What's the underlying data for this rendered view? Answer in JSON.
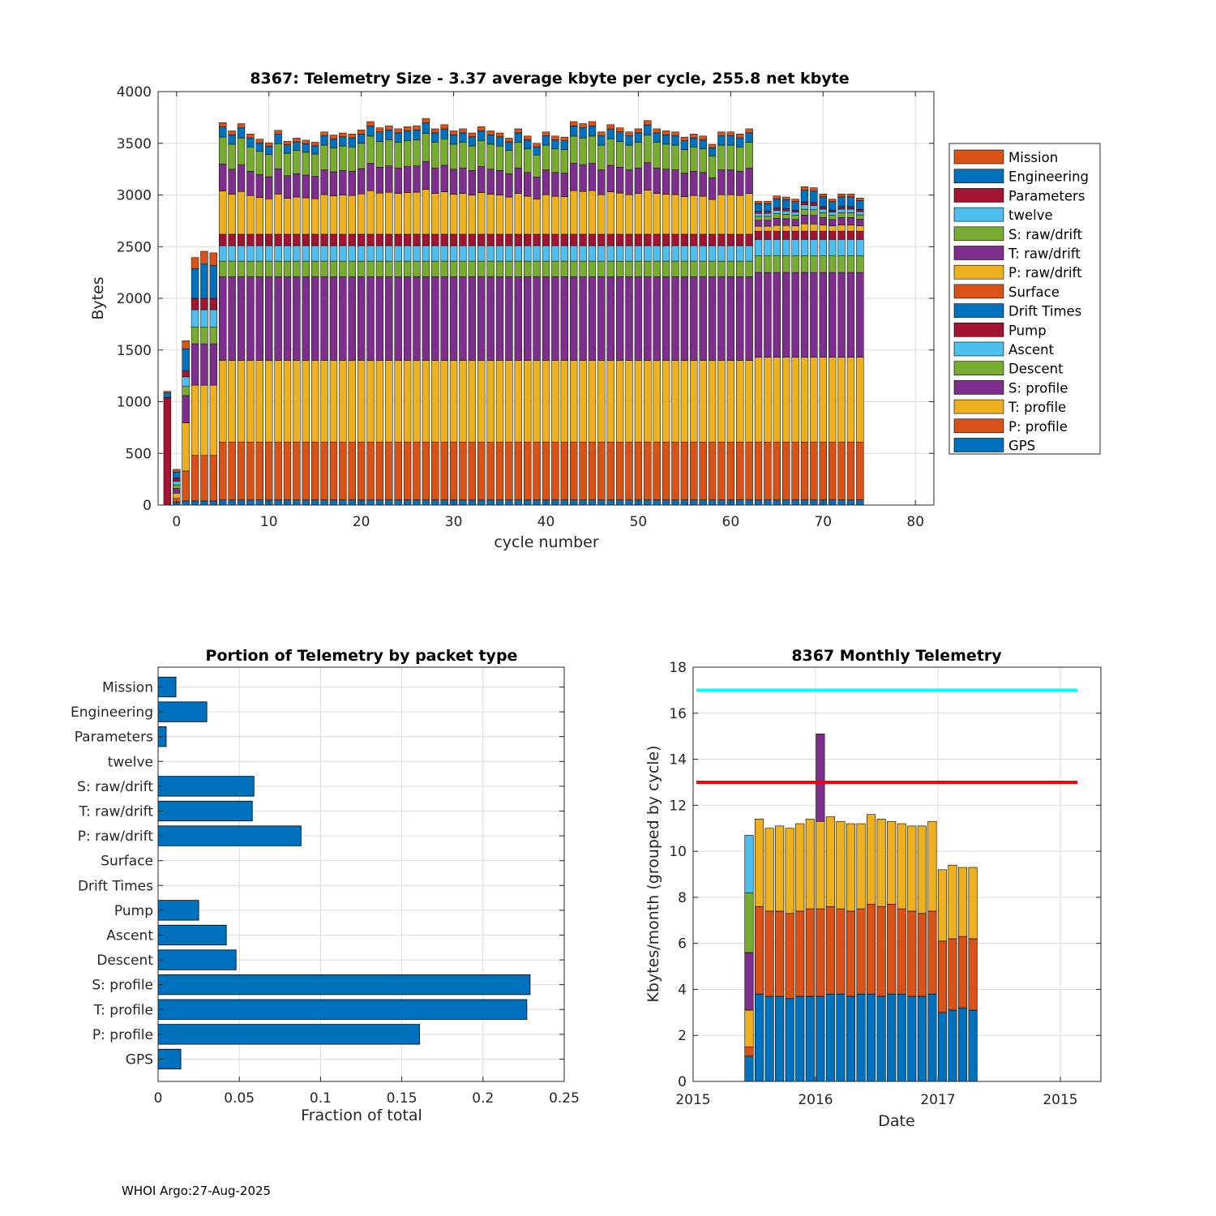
{
  "footer": "WHOI Argo:27-Aug-2025",
  "colors": {
    "Mission": "#D95319",
    "Engineering": "#0072BD",
    "Parameters": "#A2142F",
    "twelve": "#4DBEEE",
    "S: raw/drift": "#77AC30",
    "T: raw/drift": "#7E2F8E",
    "P: raw/drift": "#EDB120",
    "Surface": "#D95319",
    "Drift Times": "#0072BD",
    "Pump": "#A2142F",
    "Ascent": "#4DBEEE",
    "Descent": "#77AC30",
    "S: profile": "#7E2F8E",
    "T: profile": "#EDB120",
    "P: profile": "#D95319",
    "GPS": "#0072BD",
    "line_upper": "#00FFFF",
    "line_lower": "#FF0000"
  },
  "chart_data": [
    {
      "type": "bar",
      "stacked": true,
      "title": "8367: Telemetry Size - 3.37 average kbyte per cycle,  255.8 net kbyte",
      "xlabel": "cycle number",
      "ylabel": "Bytes",
      "xlim": [
        -2,
        82
      ],
      "ylim": [
        0,
        4000
      ],
      "xticks": [
        0,
        10,
        20,
        30,
        40,
        50,
        60,
        70,
        80
      ],
      "yticks": [
        0,
        500,
        1000,
        1500,
        2000,
        2500,
        3000,
        3500,
        4000
      ],
      "grid": true,
      "legend_position": "outside-right",
      "legend": [
        "Mission",
        "Engineering",
        "Parameters",
        "twelve",
        "S: raw/drift",
        "T: raw/drift",
        "P: raw/drift",
        "Surface",
        "Drift Times",
        "Pump",
        "Ascent",
        "Descent",
        "S: profile",
        "T: profile",
        "P: profile",
        "GPS"
      ],
      "stack_order": [
        "GPS",
        "P: profile",
        "T: profile",
        "S: profile",
        "Descent",
        "Ascent",
        "Pump",
        "Drift Times",
        "Surface",
        "P: raw/drift",
        "T: raw/drift",
        "S: raw/drift",
        "twelve",
        "Parameters",
        "Engineering",
        "Mission"
      ],
      "cycles": [
        -1,
        0,
        1,
        2,
        3,
        4,
        5,
        6,
        7,
        8,
        9,
        10,
        11,
        12,
        13,
        14,
        15,
        16,
        17,
        18,
        19,
        20,
        21,
        22,
        23,
        24,
        25,
        26,
        27,
        28,
        29,
        30,
        31,
        32,
        33,
        34,
        35,
        36,
        37,
        38,
        39,
        40,
        41,
        42,
        43,
        44,
        45,
        46,
        47,
        48,
        49,
        50,
        51,
        52,
        53,
        54,
        55,
        56,
        57,
        58,
        59,
        60,
        61,
        62,
        63,
        64,
        65,
        66,
        67,
        68,
        69,
        70,
        71,
        72,
        73,
        74
      ],
      "totals": [
        1100,
        345,
        1590,
        2395,
        2455,
        2440,
        3700,
        3620,
        3690,
        3590,
        3540,
        3505,
        3625,
        3520,
        3550,
        3530,
        3510,
        3610,
        3580,
        3600,
        3590,
        3630,
        3710,
        3650,
        3670,
        3640,
        3660,
        3670,
        3740,
        3640,
        3680,
        3620,
        3640,
        3600,
        3660,
        3620,
        3600,
        3550,
        3640,
        3570,
        3500,
        3610,
        3570,
        3560,
        3710,
        3690,
        3710,
        3610,
        3680,
        3650,
        3610,
        3640,
        3720,
        3640,
        3620,
        3610,
        3560,
        3590,
        3570,
        3490,
        3610,
        3610,
        3590,
        3640,
        2940,
        2940,
        2990,
        2980,
        2960,
        3080,
        3070,
        3010,
        2960,
        3010,
        3010,
        2970
      ],
      "notes": "Cycle -1: mostly Pump (~1020) plus Engineering. Cycle 0: small mixed stack. Cycles 1-4 and 63-74 lack the profile-raw/drift split of cycles 5-62."
    },
    {
      "type": "bar",
      "orientation": "horizontal",
      "title": "Portion of Telemetry by packet type",
      "xlabel": "Fraction of total",
      "ylabel": "",
      "xlim": [
        0,
        0.25
      ],
      "xticks": [
        0,
        0.05,
        0.1,
        0.15,
        0.2,
        0.25
      ],
      "xtick_labels": [
        "0",
        "0.05",
        "0.1",
        "0.15",
        "0.2",
        "0.25"
      ],
      "grid": true,
      "categories": [
        "GPS",
        "P: profile",
        "T: profile",
        "S: profile",
        "Descent",
        "Ascent",
        "Pump",
        "Drift Times",
        "Surface",
        "P: raw/drift",
        "T: raw/drift",
        "S: raw/drift",
        "twelve",
        "Parameters",
        "Engineering",
        "Mission"
      ],
      "values": [
        0.014,
        0.161,
        0.227,
        0.229,
        0.048,
        0.042,
        0.025,
        0.0,
        0.0,
        0.088,
        0.058,
        0.059,
        0.0,
        0.005,
        0.03,
        0.011
      ]
    },
    {
      "type": "bar",
      "stacked": true,
      "title": "8367 Monthly Telemetry",
      "xlabel": "Date",
      "ylabel": "Kbytes/month (grouped by cycle)",
      "ylim": [
        0,
        18
      ],
      "yticks": [
        0,
        2,
        4,
        6,
        8,
        10,
        12,
        14,
        16,
        18
      ],
      "xtick_labels": [
        "2015",
        "2016",
        "2017",
        "2015"
      ],
      "grid": true,
      "hlines": [
        {
          "value": 17,
          "color": "#00FFFF"
        },
        {
          "value": 13,
          "color": "#FF0000"
        }
      ],
      "series_order": [
        "bottom",
        "middle",
        "top"
      ],
      "months": [
        {
          "segments": [
            1.1,
            0.4,
            1.6,
            2.5,
            2.6,
            2.5
          ],
          "colors": [
            "#0072BD",
            "#D95319",
            "#EDB120",
            "#7E2F8E",
            "#77AC30",
            "#4DBEEE"
          ]
        },
        {
          "segments": [
            3.8,
            3.8,
            3.8
          ]
        },
        {
          "segments": [
            3.7,
            3.7,
            3.6
          ]
        },
        {
          "segments": [
            3.7,
            3.7,
            3.7
          ]
        },
        {
          "segments": [
            3.6,
            3.7,
            3.7
          ]
        },
        {
          "segments": [
            3.7,
            3.7,
            3.8
          ]
        },
        {
          "segments": [
            3.7,
            3.8,
            3.9
          ]
        },
        {
          "segments": [
            3.7,
            3.8,
            3.8
          ],
          "extra": [
            3.8
          ],
          "extra_colors": [
            "#7E2F8E"
          ]
        },
        {
          "segments": [
            3.8,
            3.8,
            3.9
          ]
        },
        {
          "segments": [
            3.8,
            3.7,
            3.8
          ]
        },
        {
          "segments": [
            3.7,
            3.7,
            3.8
          ]
        },
        {
          "segments": [
            3.8,
            3.7,
            3.7
          ]
        },
        {
          "segments": [
            3.8,
            3.9,
            3.9
          ]
        },
        {
          "segments": [
            3.7,
            3.9,
            3.8
          ]
        },
        {
          "segments": [
            3.8,
            3.9,
            3.6
          ]
        },
        {
          "segments": [
            3.8,
            3.7,
            3.7
          ]
        },
        {
          "segments": [
            3.7,
            3.7,
            3.7
          ]
        },
        {
          "segments": [
            3.7,
            3.6,
            3.8
          ]
        },
        {
          "segments": [
            3.8,
            3.6,
            3.9
          ]
        },
        {
          "segments": [
            3.0,
            3.1,
            3.1
          ]
        },
        {
          "segments": [
            3.1,
            3.1,
            3.2
          ]
        },
        {
          "segments": [
            3.2,
            3.1,
            3.0
          ]
        },
        {
          "segments": [
            3.1,
            3.1,
            3.1
          ]
        }
      ]
    }
  ]
}
